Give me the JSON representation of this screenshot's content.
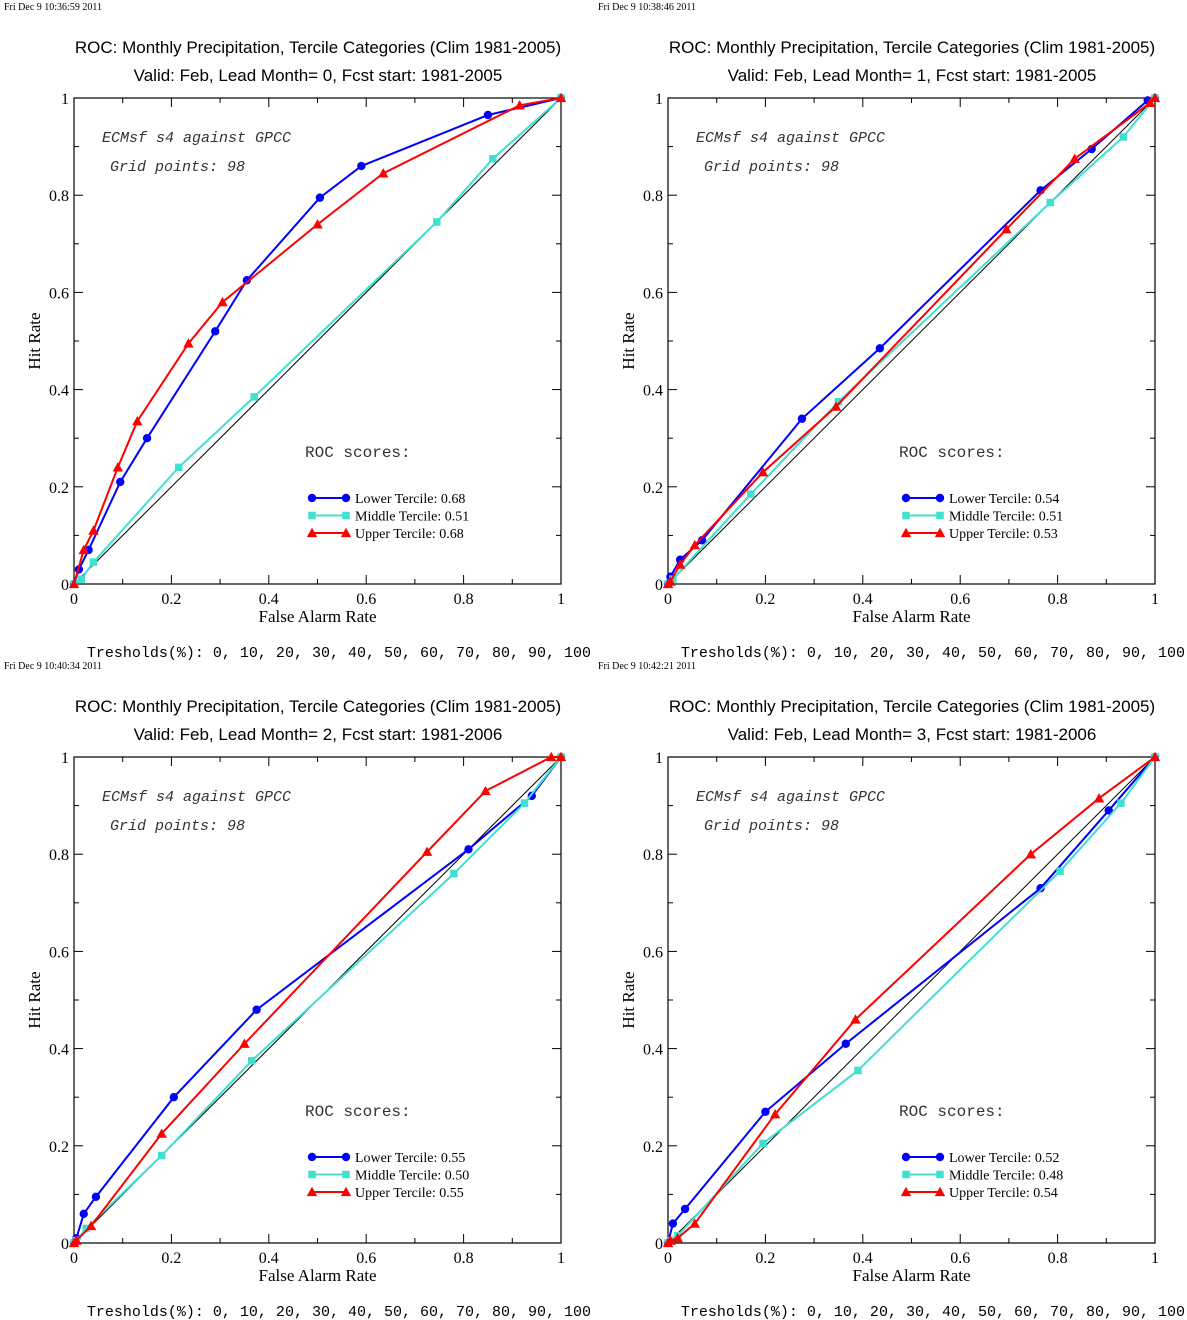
{
  "chart_data": [
    {
      "type": "line",
      "timestamp": "Fri Dec  9 10:36:59 2011",
      "title": "ROC: Monthly Precipitation, Tercile Categories (Clim 1981-2005)",
      "subtitle": "Valid: Feb, Lead Month= 0, Fcst start: 1981-2005",
      "xlabel": "False Alarm Rate",
      "ylabel": "Hit Rate",
      "xlim": [
        0,
        1
      ],
      "ylim": [
        0,
        1
      ],
      "x_ticks": [
        "0",
        "0.2",
        "0.4",
        "0.6",
        "0.8",
        "1"
      ],
      "y_ticks": [
        "0",
        "0.2",
        "0.4",
        "0.6",
        "0.8",
        "1"
      ],
      "annotations": [
        "ECMsf s4 against GPCC",
        "Grid points:   98"
      ],
      "scores_title": "ROC scores:",
      "thresholds": "Tresholds(%): 0, 10, 20, 30, 40, 50, 60, 70, 80, 90, 100",
      "series": [
        {
          "name": "Lower Tercile: 0.68",
          "color": "#0000ff",
          "marker": "circle",
          "x": [
            0,
            0.01,
            0.03,
            0.095,
            0.15,
            0.29,
            0.355,
            0.505,
            0.59,
            0.85,
            1.0
          ],
          "y": [
            0,
            0.03,
            0.07,
            0.21,
            0.3,
            0.52,
            0.625,
            0.795,
            0.86,
            0.965,
            1.0
          ]
        },
        {
          "name": "Middle Tercile: 0.51",
          "color": "#40e0d0",
          "marker": "square",
          "x": [
            0,
            0.015,
            0.04,
            0.215,
            0.37,
            0.745,
            0.86,
            1.0
          ],
          "y": [
            0,
            0.01,
            0.045,
            0.24,
            0.385,
            0.745,
            0.875,
            1.0
          ]
        },
        {
          "name": "Upper Tercile: 0.68",
          "color": "#ff0000",
          "marker": "triangle",
          "x": [
            0,
            0.02,
            0.04,
            0.09,
            0.13,
            0.235,
            0.305,
            0.5,
            0.635,
            0.915,
            1.0
          ],
          "y": [
            0,
            0.07,
            0.11,
            0.24,
            0.335,
            0.495,
            0.58,
            0.74,
            0.845,
            0.985,
            1.0
          ]
        }
      ]
    },
    {
      "type": "line",
      "timestamp": "Fri Dec  9 10:38:46 2011",
      "title": "ROC: Monthly Precipitation, Tercile Categories (Clim 1981-2005)",
      "subtitle": "Valid: Feb, Lead Month= 1, Fcst start: 1981-2005",
      "xlabel": "False Alarm Rate",
      "ylabel": "Hit Rate",
      "xlim": [
        0,
        1
      ],
      "ylim": [
        0,
        1
      ],
      "x_ticks": [
        "0",
        "0.2",
        "0.4",
        "0.6",
        "0.8",
        "1"
      ],
      "y_ticks": [
        "0",
        "0.2",
        "0.4",
        "0.6",
        "0.8",
        "1"
      ],
      "annotations": [
        "ECMsf s4 against GPCC",
        "Grid points:   98"
      ],
      "scores_title": "ROC scores:",
      "thresholds": "Tresholds(%): 0, 10, 20, 30, 40, 50, 60, 70, 80, 90, 100",
      "series": [
        {
          "name": "Lower Tercile: 0.54",
          "color": "#0000ff",
          "marker": "circle",
          "x": [
            0,
            0.005,
            0.025,
            0.07,
            0.275,
            0.435,
            0.765,
            0.87,
            0.985,
            1.0
          ],
          "y": [
            0,
            0.015,
            0.05,
            0.09,
            0.34,
            0.485,
            0.81,
            0.895,
            0.995,
            1.0
          ]
        },
        {
          "name": "Middle Tercile: 0.51",
          "color": "#40e0d0",
          "marker": "square",
          "x": [
            0,
            0.01,
            0.17,
            0.35,
            0.785,
            0.935,
            1.0
          ],
          "y": [
            0,
            0.01,
            0.185,
            0.375,
            0.785,
            0.92,
            1.0
          ]
        },
        {
          "name": "Upper Tercile: 0.53",
          "color": "#ff0000",
          "marker": "triangle",
          "x": [
            0,
            0.005,
            0.025,
            0.055,
            0.195,
            0.345,
            0.695,
            0.835,
            0.99,
            1.0
          ],
          "y": [
            0,
            0.005,
            0.04,
            0.08,
            0.23,
            0.365,
            0.73,
            0.875,
            0.99,
            1.0
          ]
        }
      ]
    },
    {
      "type": "line",
      "timestamp": "Fri Dec  9 10:40:34 2011",
      "title": "ROC: Monthly Precipitation, Tercile Categories (Clim 1981-2005)",
      "subtitle": "Valid: Feb, Lead Month= 2, Fcst start: 1981-2006",
      "xlabel": "False Alarm Rate",
      "ylabel": "Hit Rate",
      "xlim": [
        0,
        1
      ],
      "ylim": [
        0,
        1
      ],
      "x_ticks": [
        "0",
        "0.2",
        "0.4",
        "0.6",
        "0.8",
        "1"
      ],
      "y_ticks": [
        "0",
        "0.2",
        "0.4",
        "0.6",
        "0.8",
        "1"
      ],
      "annotations": [
        "ECMsf s4 against GPCC",
        "Grid points:   98"
      ],
      "scores_title": "ROC scores:",
      "thresholds": "Tresholds(%): 0, 10, 20, 30, 40, 50, 60, 70, 80, 90, 100",
      "series": [
        {
          "name": "Lower Tercile: 0.55",
          "color": "#0000ff",
          "marker": "circle",
          "x": [
            0,
            0.005,
            0.02,
            0.045,
            0.205,
            0.375,
            0.81,
            0.94,
            1.0
          ],
          "y": [
            0,
            0.01,
            0.06,
            0.095,
            0.3,
            0.48,
            0.81,
            0.92,
            1.0
          ]
        },
        {
          "name": "Middle Tercile: 0.50",
          "color": "#40e0d0",
          "marker": "square",
          "x": [
            0,
            0.005,
            0.025,
            0.18,
            0.365,
            0.78,
            0.925,
            1.0
          ],
          "y": [
            0,
            0.005,
            0.03,
            0.18,
            0.375,
            0.76,
            0.905,
            1.0
          ]
        },
        {
          "name": "Upper Tercile: 0.55",
          "color": "#ff0000",
          "marker": "triangle",
          "x": [
            0,
            0.005,
            0.035,
            0.18,
            0.35,
            0.725,
            0.845,
            0.98,
            1.0
          ],
          "y": [
            0,
            0.005,
            0.035,
            0.225,
            0.41,
            0.805,
            0.93,
            1.0,
            1.0
          ]
        }
      ]
    },
    {
      "type": "line",
      "timestamp": "Fri Dec  9 10:42:21 2011",
      "title": "ROC: Monthly Precipitation, Tercile Categories (Clim 1981-2005)",
      "subtitle": "Valid: Feb, Lead Month= 3, Fcst start: 1981-2006",
      "xlabel": "False Alarm Rate",
      "ylabel": "Hit Rate",
      "xlim": [
        0,
        1
      ],
      "ylim": [
        0,
        1
      ],
      "x_ticks": [
        "0",
        "0.2",
        "0.4",
        "0.6",
        "0.8",
        "1"
      ],
      "y_ticks": [
        "0",
        "0.2",
        "0.4",
        "0.6",
        "0.8",
        "1"
      ],
      "annotations": [
        "ECMsf s4 against GPCC",
        "Grid points:   98"
      ],
      "scores_title": "ROC scores:",
      "thresholds": "Tresholds(%): 0, 10, 20, 30, 40, 50, 60, 70, 80, 90, 100",
      "series": [
        {
          "name": "Lower Tercile: 0.52",
          "color": "#0000ff",
          "marker": "circle",
          "x": [
            0,
            0.01,
            0.035,
            0.2,
            0.365,
            0.765,
            0.905,
            1.0
          ],
          "y": [
            0,
            0.04,
            0.07,
            0.27,
            0.41,
            0.73,
            0.89,
            1.0
          ]
        },
        {
          "name": "Middle Tercile: 0.48",
          "color": "#40e0d0",
          "marker": "square",
          "x": [
            0,
            0.005,
            0.02,
            0.195,
            0.39,
            0.805,
            0.93,
            1.0
          ],
          "y": [
            0,
            0.005,
            0.015,
            0.205,
            0.355,
            0.765,
            0.905,
            1.0
          ]
        },
        {
          "name": "Upper Tercile: 0.54",
          "color": "#ff0000",
          "marker": "triangle",
          "x": [
            0,
            0.005,
            0.02,
            0.055,
            0.22,
            0.385,
            0.745,
            0.885,
            1.0
          ],
          "y": [
            0,
            0.005,
            0.01,
            0.04,
            0.265,
            0.46,
            0.8,
            0.915,
            1.0
          ]
        }
      ]
    }
  ]
}
